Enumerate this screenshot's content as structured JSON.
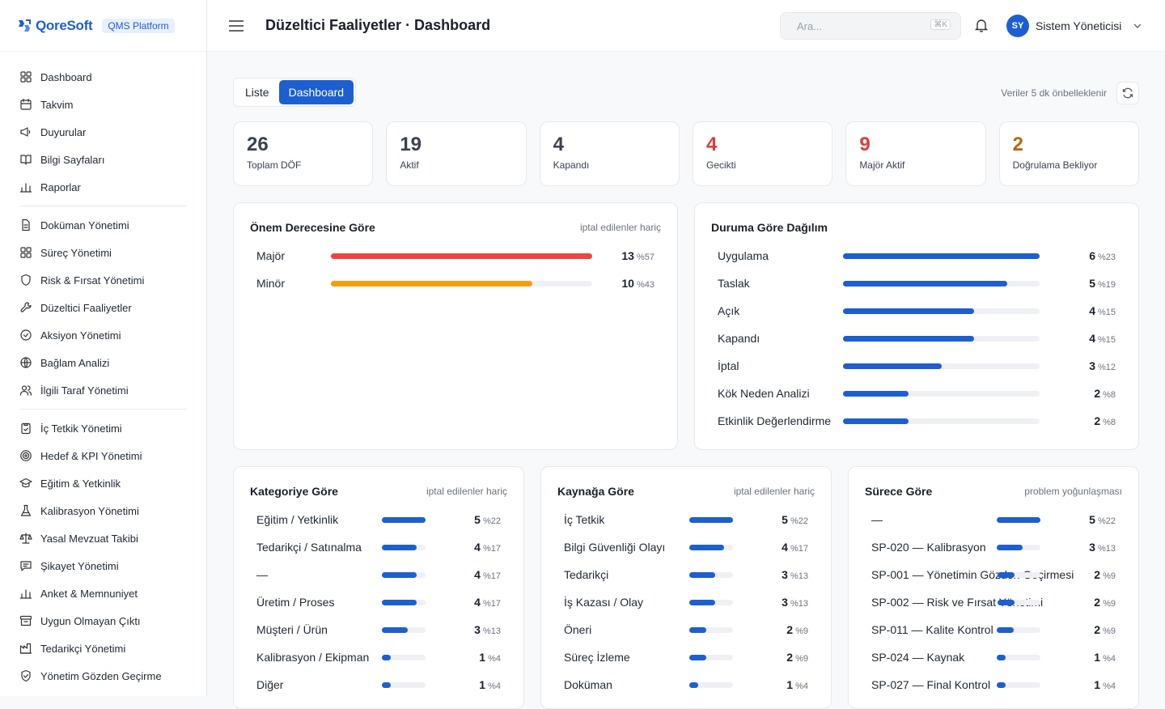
{
  "brand": {
    "logo_text": "QoreSoft",
    "platform_badge": "QMS Platform"
  },
  "sidebar": {
    "groups": [
      [
        {
          "label": "Dashboard",
          "icon": "grid-icon"
        },
        {
          "label": "Takvim",
          "icon": "calendar-icon"
        },
        {
          "label": "Duyurular",
          "icon": "megaphone-icon"
        },
        {
          "label": "Bilgi Sayfaları",
          "icon": "book-icon"
        },
        {
          "label": "Raporlar",
          "icon": "bar-chart-icon"
        }
      ],
      [
        {
          "label": "Doküman Yönetimi",
          "icon": "document-icon"
        },
        {
          "label": "Süreç Yönetimi",
          "icon": "grid-icon"
        },
        {
          "label": "Risk & Fırsat Yönetimi",
          "icon": "shield-icon"
        },
        {
          "label": "Düzeltici Faaliyetler",
          "icon": "wrench-icon"
        },
        {
          "label": "Aksiyon Yönetimi",
          "icon": "check-circle-icon"
        },
        {
          "label": "Bağlam Analizi",
          "icon": "globe-icon"
        },
        {
          "label": "İlgili Taraf Yönetimi",
          "icon": "users-icon"
        }
      ],
      [
        {
          "label": "İç Tetkik Yönetimi",
          "icon": "clipboard-check-icon"
        },
        {
          "label": "Hedef & KPI Yönetimi",
          "icon": "target-icon"
        },
        {
          "label": "Eğitim & Yetkinlik",
          "icon": "graduation-cap-icon"
        },
        {
          "label": "Kalibrasyon Yönetimi",
          "icon": "flask-icon"
        },
        {
          "label": "Yasal Mevzuat Takibi",
          "icon": "scale-icon"
        },
        {
          "label": "Şikayet Yönetimi",
          "icon": "message-icon"
        },
        {
          "label": "Anket & Memnuniyet",
          "icon": "bar-chart-icon"
        },
        {
          "label": "Uygun Olmayan Çıktı",
          "icon": "archive-icon"
        },
        {
          "label": "Tedarikçi Yönetimi",
          "icon": "factory-icon"
        },
        {
          "label": "Yönetim Gözden Geçirme",
          "icon": "shield-check-icon"
        }
      ]
    ]
  },
  "header": {
    "title": "Düzeltici Faaliyetler · Dashboard",
    "search_placeholder": "Ara...",
    "search_shortcut": "⌘K",
    "user_initials": "SY",
    "user_name": "Sistem Yöneticisi"
  },
  "view_toggle": {
    "list_label": "Liste",
    "dashboard_label": "Dashboard",
    "active": "dashboard"
  },
  "cache_note": "Veriler 5 dk önbelleklenir",
  "kpis": [
    {
      "value": "26",
      "label": "Toplam DÖF",
      "color": "#3a4152"
    },
    {
      "value": "19",
      "label": "Aktif",
      "color": "#3a4152"
    },
    {
      "value": "4",
      "label": "Kapandı",
      "color": "#3a4152"
    },
    {
      "value": "4",
      "label": "Gecikti",
      "color": "#dc3a3a"
    },
    {
      "value": "9",
      "label": "Majör Aktif",
      "color": "#dc3a3a"
    },
    {
      "value": "2",
      "label": "Doğrulama Bekliyor",
      "color": "#b06a12"
    }
  ],
  "cards": {
    "severity": {
      "title": "Önem Derecesine Göre",
      "subtitle": "iptal edilenler hariç",
      "rows": [
        {
          "label": "Majör",
          "count": "13",
          "pct": "%57",
          "value": 13,
          "color": "#ef4444"
        },
        {
          "label": "Minör",
          "count": "10",
          "pct": "%43",
          "value": 10,
          "color": "#f59e0b"
        }
      ],
      "max": 13
    },
    "status": {
      "title": "Duruma Göre Dağılım",
      "subtitle": "",
      "rows": [
        {
          "label": "Uygulama",
          "count": "6",
          "pct": "%23",
          "value": 6
        },
        {
          "label": "Taslak",
          "count": "5",
          "pct": "%19",
          "value": 5
        },
        {
          "label": "Açık",
          "count": "4",
          "pct": "%15",
          "value": 4
        },
        {
          "label": "Kapandı",
          "count": "4",
          "pct": "%15",
          "value": 4
        },
        {
          "label": "İptal",
          "count": "3",
          "pct": "%12",
          "value": 3
        },
        {
          "label": "Kök Neden Analizi",
          "count": "2",
          "pct": "%8",
          "value": 2
        },
        {
          "label": "Etkinlik Değerlendirme",
          "count": "2",
          "pct": "%8",
          "value": 2
        }
      ],
      "max": 6
    },
    "category": {
      "title": "Kategoriye Göre",
      "subtitle": "iptal edilenler hariç",
      "rows": [
        {
          "label": "Eğitim / Yetkinlik",
          "count": "5",
          "pct": "%22",
          "value": 5
        },
        {
          "label": "Tedarikçi / Satınalma",
          "count": "4",
          "pct": "%17",
          "value": 4
        },
        {
          "label": "—",
          "count": "4",
          "pct": "%17",
          "value": 4
        },
        {
          "label": "Üretim / Proses",
          "count": "4",
          "pct": "%17",
          "value": 4
        },
        {
          "label": "Müşteri / Ürün",
          "count": "3",
          "pct": "%13",
          "value": 3
        },
        {
          "label": "Kalibrasyon / Ekipman",
          "count": "1",
          "pct": "%4",
          "value": 1
        },
        {
          "label": "Diğer",
          "count": "1",
          "pct": "%4",
          "value": 1
        }
      ],
      "max": 5
    },
    "source": {
      "title": "Kaynağa Göre",
      "subtitle": "iptal edilenler hariç",
      "rows": [
        {
          "label": "İç Tetkik",
          "count": "5",
          "pct": "%22",
          "value": 5
        },
        {
          "label": "Bilgi Güvenliği Olayı",
          "count": "4",
          "pct": "%17",
          "value": 4
        },
        {
          "label": "Tedarikçi",
          "count": "3",
          "pct": "%13",
          "value": 3
        },
        {
          "label": "İş Kazası / Olay",
          "count": "3",
          "pct": "%13",
          "value": 3
        },
        {
          "label": "Öneri",
          "count": "2",
          "pct": "%9",
          "value": 2
        },
        {
          "label": "Süreç İzleme",
          "count": "2",
          "pct": "%9",
          "value": 2
        },
        {
          "label": "Doküman",
          "count": "1",
          "pct": "%4",
          "value": 1
        }
      ],
      "max": 5
    },
    "process": {
      "title": "Sürece Göre",
      "subtitle": "problem yoğunlaşması",
      "rows": [
        {
          "label": "—",
          "count": "5",
          "pct": "%22",
          "value": 5
        },
        {
          "label": "SP-020 — Kalibrasyon",
          "count": "3",
          "pct": "%13",
          "value": 3
        },
        {
          "label": "SP-001 — Yönetimin Gözden Geçirmesi",
          "count": "2",
          "pct": "%9",
          "value": 2
        },
        {
          "label": "SP-002 — Risk ve Fırsat Yönetimi",
          "count": "2",
          "pct": "%9",
          "value": 2
        },
        {
          "label": "SP-011 — Kalite Kontrol",
          "count": "2",
          "pct": "%9",
          "value": 2
        },
        {
          "label": "SP-024 — Kaynak",
          "count": "1",
          "pct": "%4",
          "value": 1
        },
        {
          "label": "SP-027 — Final Kontrol",
          "count": "1",
          "pct": "%4",
          "value": 1
        }
      ],
      "max": 5
    }
  },
  "colors": {
    "accent": "#1d5fd1",
    "danger": "#ef4444",
    "warning": "#f59e0b"
  }
}
